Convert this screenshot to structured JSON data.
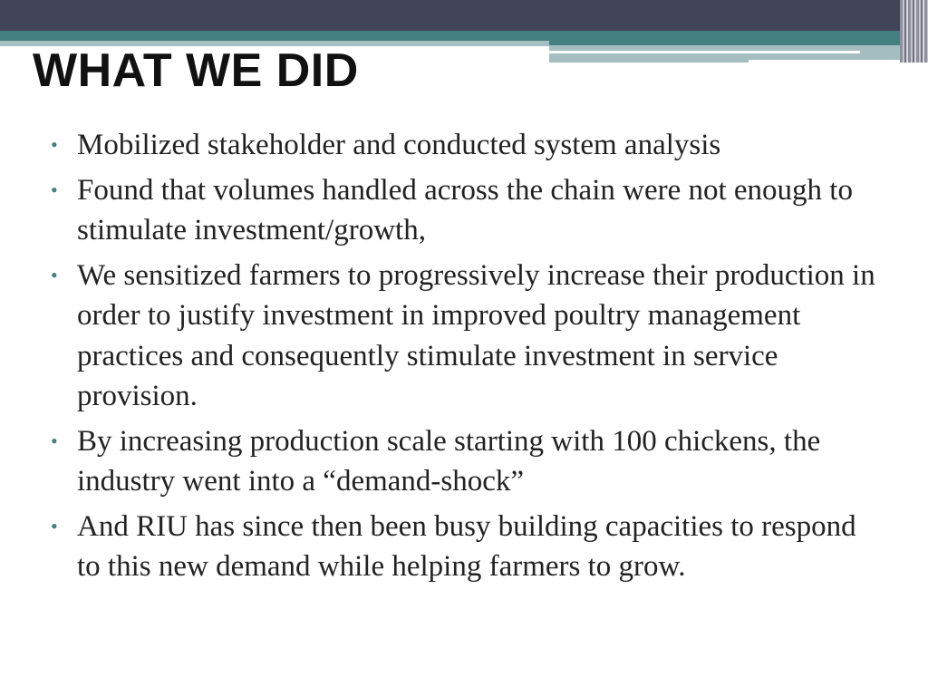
{
  "slide": {
    "title": "WHAT WE DID",
    "bullets": [
      "Mobilized stakeholder and conducted system analysis",
      "Found that volumes handled across the chain were not enough to stimulate investment/growth,",
      "We sensitized farmers to progressively increase their production in order to justify investment in improved poultry management practices and consequently stimulate investment in service provision.",
      "By increasing production scale starting with 100 chickens, the industry went into a “demand-shock”",
      "And RIU has since then been busy building capacities to respond to this new demand while helping farmers to grow."
    ],
    "colors": {
      "header_dark": "#424457",
      "accent_teal": "#447f82",
      "light_teal": "#a3bdc0"
    }
  }
}
